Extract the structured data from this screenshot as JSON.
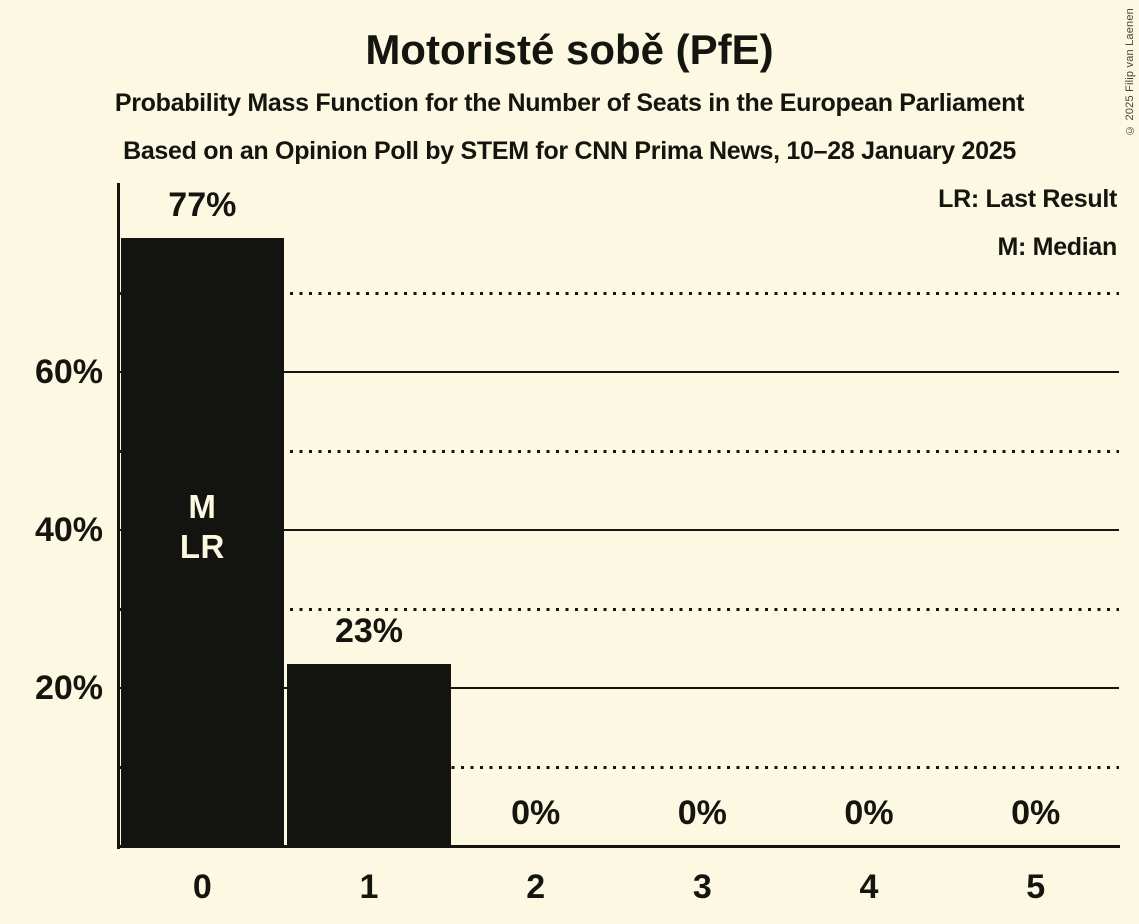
{
  "copyright": "© 2025 Filip van Laenen",
  "chart_data": {
    "type": "bar",
    "title": "Motoristé sobě (PfE)",
    "subtitle_line1": "Probability Mass Function for the Number of Seats in the European Parliament",
    "subtitle_line2": "Based on an Opinion Poll by STEM for CNN Prima News, 10–28 January 2025",
    "legend": [
      "LR: Last Result",
      "M: Median"
    ],
    "legend_position": "top-right",
    "categories": [
      "0",
      "1",
      "2",
      "3",
      "4",
      "5"
    ],
    "values": [
      77,
      23,
      0,
      0,
      0,
      0
    ],
    "value_labels": [
      "77%",
      "23%",
      "0%",
      "0%",
      "0%",
      "0%"
    ],
    "xlabel": "",
    "ylabel": "",
    "ylim": [
      0,
      84
    ],
    "yticks_solid": [
      20,
      40,
      60
    ],
    "ytick_labels": [
      "20%",
      "40%",
      "60%"
    ],
    "gridlines_dotted": [
      10,
      30,
      50,
      70
    ],
    "grid": true,
    "annotations": [
      {
        "category_index": 0,
        "lines": [
          "M",
          "LR"
        ]
      }
    ],
    "colors": {
      "background": "#FCF8E2",
      "bar": "#131310",
      "text": "#15150F",
      "bar_label": "#FCF8E2"
    }
  }
}
